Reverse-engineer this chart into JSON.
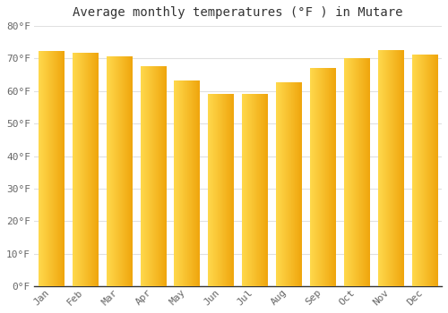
{
  "title": "Average monthly temperatures (°F ) in Mutare",
  "months": [
    "Jan",
    "Feb",
    "Mar",
    "Apr",
    "May",
    "Jun",
    "Jul",
    "Aug",
    "Sep",
    "Oct",
    "Nov",
    "Dec"
  ],
  "values": [
    72,
    71.5,
    70.5,
    67.5,
    63,
    59,
    59,
    62.5,
    67,
    70,
    72.5,
    71
  ],
  "ylim": [
    0,
    80
  ],
  "yticks": [
    0,
    10,
    20,
    30,
    40,
    50,
    60,
    70,
    80
  ],
  "ytick_labels": [
    "0°F",
    "10°F",
    "20°F",
    "30°F",
    "40°F",
    "50°F",
    "60°F",
    "70°F",
    "80°F"
  ],
  "bar_color_left": "#FFD966",
  "bar_color_right": "#F0A800",
  "background_color": "#ffffff",
  "plot_bg_color": "#ffffff",
  "grid_color": "#e0e0e0",
  "title_fontsize": 10,
  "tick_fontsize": 8,
  "font_family": "monospace",
  "bar_width": 0.75,
  "bar_gradient_steps": 50
}
